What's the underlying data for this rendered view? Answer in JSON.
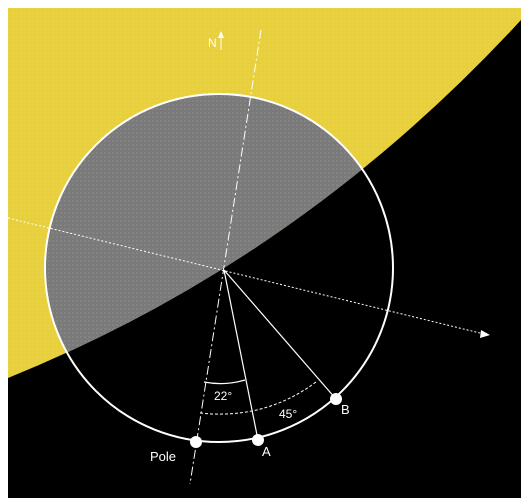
{
  "diagram": {
    "colors": {
      "background": "#000000",
      "lit_region": "#e8cf3c",
      "disc_shade": "#7a7a7a",
      "lines": "#ffffff",
      "frame": "#ffffff"
    },
    "labels": {
      "north": "N",
      "pole": "Pole",
      "point_a": "A",
      "point_b": "B",
      "angle_small": "22°",
      "angle_large": "45°"
    },
    "angles_deg": {
      "pole_to_a": 22,
      "pole_to_b": 45
    }
  }
}
